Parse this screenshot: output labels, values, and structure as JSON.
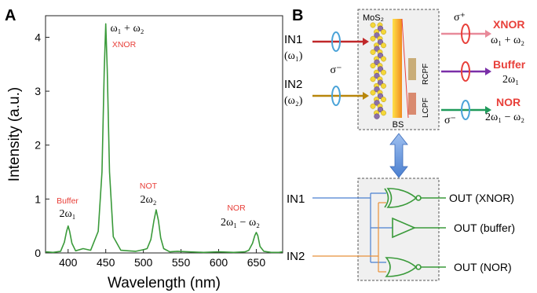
{
  "panels": {
    "a_label": "A",
    "b_label": "B"
  },
  "chart_data": {
    "type": "line",
    "xlabel": "Wavelength (nm)",
    "ylabel": "Intensity (a.u.)",
    "xlim": [
      370,
      685
    ],
    "ylim": [
      0,
      4.4
    ],
    "x_ticks": [
      "400",
      "450",
      "500",
      "550",
      "600",
      "650"
    ],
    "y_ticks": [
      "0",
      "1",
      "2",
      "3",
      "4"
    ],
    "color": "#3a9a3a",
    "series": [
      {
        "x": [
          370,
          380,
          390,
          395,
          398,
          400,
          402,
          405,
          410,
          420,
          430,
          440,
          445,
          448,
          450,
          452,
          455,
          460,
          470,
          480,
          490,
          500,
          505,
          510,
          514,
          517,
          520,
          523,
          527,
          535,
          545,
          560,
          580,
          600,
          620,
          635,
          640,
          645,
          648,
          650,
          652,
          655,
          660,
          670,
          680,
          685
        ],
        "y": [
          0.02,
          0.01,
          0.03,
          0.2,
          0.4,
          0.5,
          0.4,
          0.18,
          0.04,
          0.08,
          0.05,
          0.4,
          1.5,
          3.4,
          4.25,
          3.4,
          1.5,
          0.3,
          0.05,
          0.04,
          0.03,
          0.06,
          0.08,
          0.25,
          0.6,
          0.8,
          0.6,
          0.28,
          0.08,
          0.02,
          0.03,
          0.02,
          0.01,
          0.02,
          0.01,
          0.02,
          0.05,
          0.18,
          0.32,
          0.38,
          0.32,
          0.12,
          0.03,
          0.01,
          0.01,
          0.02
        ]
      }
    ],
    "annotations": [
      {
        "gate": "Buffer",
        "freq": "2ω₁",
        "x": 400
      },
      {
        "gate": "XNOR",
        "freq": "ω₁ + ω₂",
        "x": 451
      },
      {
        "gate": "NOT",
        "freq": "2ω₂",
        "x": 518
      },
      {
        "gate": "NOR",
        "freq": "2ω₁ − ω₂",
        "x": 650
      }
    ]
  },
  "schematic": {
    "in1": "IN1",
    "in1_freq": "(ω₁)",
    "in2": "IN2",
    "in2_freq": "(ω₂)",
    "sigma_minus": "σ⁻",
    "sigma_plus": "σ⁺",
    "mos2": "MoS₂",
    "bs": "BS",
    "rcpf": "RCPF",
    "lcpf": "LCPF",
    "out_xnor_gate": "XNOR",
    "out_xnor_freq": "ω₁ + ω₂",
    "out_buffer_gate": "Buffer",
    "out_buffer_freq": "2ω₁",
    "out_nor_gate": "NOR",
    "out_nor_freq": "2ω₁ − ω₂",
    "sigma_minus_out": "σ⁻"
  },
  "logic": {
    "in1": "IN1",
    "in2": "IN2",
    "out1": "OUT (XNOR)",
    "out2": "OUT (buffer)",
    "out3": "OUT (NOR)"
  },
  "colors": {
    "label_red": "#e8403a",
    "gate_green": "#3a9a3a",
    "wire_blue": "#4a7fd0",
    "wire_orange": "#e8913a"
  }
}
